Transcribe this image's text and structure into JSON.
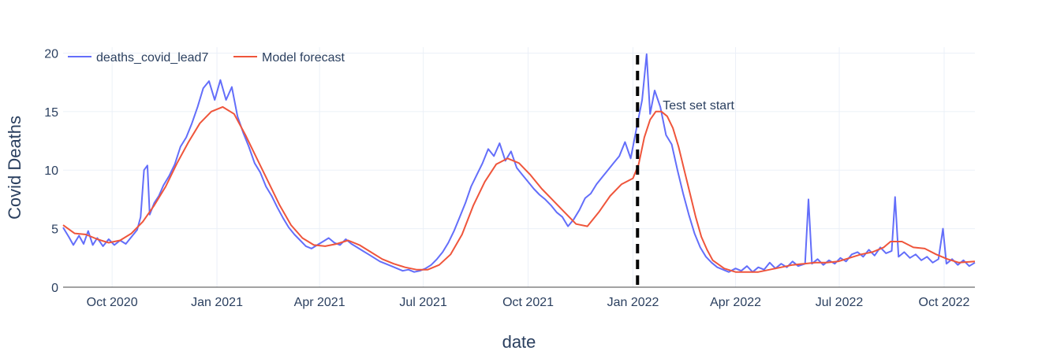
{
  "chart_data": {
    "type": "line",
    "xlabel": "date",
    "ylabel": "Covid Deaths",
    "xlim": [
      "2020-08-19",
      "2022-10-28"
    ],
    "ylim": [
      0,
      20.5
    ],
    "yticks": [
      0,
      5,
      10,
      15,
      20
    ],
    "xticks": [
      {
        "date": "2020-10-01",
        "label": "Oct 2020"
      },
      {
        "date": "2021-01-01",
        "label": "Jan 2021"
      },
      {
        "date": "2021-04-01",
        "label": "Apr 2021"
      },
      {
        "date": "2021-07-01",
        "label": "Jul 2021"
      },
      {
        "date": "2021-10-01",
        "label": "Oct 2021"
      },
      {
        "date": "2022-01-01",
        "label": "Jan 2022"
      },
      {
        "date": "2022-04-01",
        "label": "Apr 2022"
      },
      {
        "date": "2022-07-01",
        "label": "Jul 2022"
      },
      {
        "date": "2022-10-01",
        "label": "Oct 2022"
      }
    ],
    "grid": true,
    "legend": {
      "position": "top-left",
      "orientation": "horizontal"
    },
    "series": [
      {
        "name": "deaths_covid_lead7",
        "color": "#636efa",
        "points": [
          [
            "2020-08-19",
            5.1
          ],
          [
            "2020-08-24",
            4.3
          ],
          [
            "2020-08-28",
            3.6
          ],
          [
            "2020-09-02",
            4.4
          ],
          [
            "2020-09-06",
            3.7
          ],
          [
            "2020-09-10",
            4.8
          ],
          [
            "2020-09-14",
            3.6
          ],
          [
            "2020-09-18",
            4.2
          ],
          [
            "2020-09-23",
            3.5
          ],
          [
            "2020-09-28",
            4.1
          ],
          [
            "2020-10-03",
            3.6
          ],
          [
            "2020-10-08",
            4.0
          ],
          [
            "2020-10-13",
            3.7
          ],
          [
            "2020-10-18",
            4.3
          ],
          [
            "2020-10-23",
            4.9
          ],
          [
            "2020-10-26",
            6.0
          ],
          [
            "2020-10-29",
            10.0
          ],
          [
            "2020-11-01",
            10.4
          ],
          [
            "2020-11-03",
            6.2
          ],
          [
            "2020-11-07",
            7.2
          ],
          [
            "2020-11-11",
            7.8
          ],
          [
            "2020-11-15",
            8.7
          ],
          [
            "2020-11-20",
            9.5
          ],
          [
            "2020-11-25",
            10.5
          ],
          [
            "2020-11-30",
            12.0
          ],
          [
            "2020-12-05",
            12.8
          ],
          [
            "2020-12-10",
            14.0
          ],
          [
            "2020-12-15",
            15.4
          ],
          [
            "2020-12-20",
            17.0
          ],
          [
            "2020-12-25",
            17.6
          ],
          [
            "2020-12-30",
            16.0
          ],
          [
            "2021-01-04",
            17.7
          ],
          [
            "2021-01-09",
            16.0
          ],
          [
            "2021-01-14",
            17.1
          ],
          [
            "2021-01-19",
            14.6
          ],
          [
            "2021-01-24",
            13.2
          ],
          [
            "2021-01-29",
            12.0
          ],
          [
            "2021-02-03",
            10.6
          ],
          [
            "2021-02-08",
            9.8
          ],
          [
            "2021-02-13",
            8.6
          ],
          [
            "2021-02-18",
            7.8
          ],
          [
            "2021-02-23",
            6.8
          ],
          [
            "2021-02-28",
            5.9
          ],
          [
            "2021-03-05",
            5.1
          ],
          [
            "2021-03-10",
            4.5
          ],
          [
            "2021-03-15",
            4.0
          ],
          [
            "2021-03-20",
            3.5
          ],
          [
            "2021-03-25",
            3.3
          ],
          [
            "2021-03-30",
            3.6
          ],
          [
            "2021-04-04",
            3.9
          ],
          [
            "2021-04-09",
            4.2
          ],
          [
            "2021-04-14",
            3.8
          ],
          [
            "2021-04-19",
            3.6
          ],
          [
            "2021-04-24",
            4.1
          ],
          [
            "2021-04-29",
            3.7
          ],
          [
            "2021-05-04",
            3.4
          ],
          [
            "2021-05-09",
            3.1
          ],
          [
            "2021-05-14",
            2.8
          ],
          [
            "2021-05-19",
            2.5
          ],
          [
            "2021-05-24",
            2.2
          ],
          [
            "2021-05-29",
            2.0
          ],
          [
            "2021-06-03",
            1.8
          ],
          [
            "2021-06-08",
            1.6
          ],
          [
            "2021-06-13",
            1.4
          ],
          [
            "2021-06-18",
            1.5
          ],
          [
            "2021-06-23",
            1.3
          ],
          [
            "2021-06-28",
            1.4
          ],
          [
            "2021-07-03",
            1.6
          ],
          [
            "2021-07-08",
            1.9
          ],
          [
            "2021-07-13",
            2.4
          ],
          [
            "2021-07-18",
            3.0
          ],
          [
            "2021-07-23",
            3.8
          ],
          [
            "2021-07-28",
            4.8
          ],
          [
            "2021-08-02",
            6.0
          ],
          [
            "2021-08-07",
            7.2
          ],
          [
            "2021-08-12",
            8.6
          ],
          [
            "2021-08-17",
            9.6
          ],
          [
            "2021-08-22",
            10.6
          ],
          [
            "2021-08-27",
            11.8
          ],
          [
            "2021-09-01",
            11.2
          ],
          [
            "2021-09-06",
            12.3
          ],
          [
            "2021-09-11",
            10.8
          ],
          [
            "2021-09-16",
            11.6
          ],
          [
            "2021-09-21",
            10.2
          ],
          [
            "2021-09-26",
            9.6
          ],
          [
            "2021-10-01",
            9.0
          ],
          [
            "2021-10-06",
            8.4
          ],
          [
            "2021-10-11",
            7.9
          ],
          [
            "2021-10-16",
            7.5
          ],
          [
            "2021-10-21",
            7.0
          ],
          [
            "2021-10-26",
            6.4
          ],
          [
            "2021-10-31",
            6.0
          ],
          [
            "2021-11-05",
            5.2
          ],
          [
            "2021-11-10",
            5.8
          ],
          [
            "2021-11-15",
            6.6
          ],
          [
            "2021-11-20",
            7.6
          ],
          [
            "2021-11-25",
            8.0
          ],
          [
            "2021-11-30",
            8.8
          ],
          [
            "2021-12-05",
            9.4
          ],
          [
            "2021-12-10",
            10.0
          ],
          [
            "2021-12-15",
            10.6
          ],
          [
            "2021-12-20",
            11.2
          ],
          [
            "2021-12-25",
            12.4
          ],
          [
            "2021-12-30",
            11.0
          ],
          [
            "2022-01-04",
            13.5
          ],
          [
            "2022-01-09",
            16.0
          ],
          [
            "2022-01-13",
            19.9
          ],
          [
            "2022-01-16",
            14.8
          ],
          [
            "2022-01-20",
            16.8
          ],
          [
            "2022-01-25",
            15.4
          ],
          [
            "2022-01-30",
            13.0
          ],
          [
            "2022-02-04",
            12.2
          ],
          [
            "2022-02-09",
            10.0
          ],
          [
            "2022-02-14",
            8.0
          ],
          [
            "2022-02-19",
            6.2
          ],
          [
            "2022-02-24",
            4.6
          ],
          [
            "2022-03-01",
            3.4
          ],
          [
            "2022-03-06",
            2.6
          ],
          [
            "2022-03-11",
            2.1
          ],
          [
            "2022-03-16",
            1.7
          ],
          [
            "2022-03-21",
            1.5
          ],
          [
            "2022-03-26",
            1.3
          ],
          [
            "2022-04-01",
            1.6
          ],
          [
            "2022-04-06",
            1.4
          ],
          [
            "2022-04-11",
            1.8
          ],
          [
            "2022-04-16",
            1.3
          ],
          [
            "2022-04-21",
            1.7
          ],
          [
            "2022-04-26",
            1.5
          ],
          [
            "2022-05-01",
            2.1
          ],
          [
            "2022-05-06",
            1.6
          ],
          [
            "2022-05-11",
            2.0
          ],
          [
            "2022-05-16",
            1.7
          ],
          [
            "2022-05-21",
            2.2
          ],
          [
            "2022-05-26",
            1.8
          ],
          [
            "2022-06-01",
            2.0
          ],
          [
            "2022-06-04",
            7.5
          ],
          [
            "2022-06-07",
            2.0
          ],
          [
            "2022-06-12",
            2.4
          ],
          [
            "2022-06-17",
            1.9
          ],
          [
            "2022-06-22",
            2.3
          ],
          [
            "2022-06-27",
            2.0
          ],
          [
            "2022-07-02",
            2.5
          ],
          [
            "2022-07-07",
            2.2
          ],
          [
            "2022-07-12",
            2.8
          ],
          [
            "2022-07-17",
            3.0
          ],
          [
            "2022-07-22",
            2.6
          ],
          [
            "2022-07-27",
            3.2
          ],
          [
            "2022-08-01",
            2.7
          ],
          [
            "2022-08-06",
            3.4
          ],
          [
            "2022-08-11",
            2.9
          ],
          [
            "2022-08-16",
            3.1
          ],
          [
            "2022-08-19",
            7.7
          ],
          [
            "2022-08-22",
            2.6
          ],
          [
            "2022-08-27",
            3.0
          ],
          [
            "2022-09-01",
            2.5
          ],
          [
            "2022-09-06",
            2.8
          ],
          [
            "2022-09-11",
            2.3
          ],
          [
            "2022-09-16",
            2.6
          ],
          [
            "2022-09-21",
            2.1
          ],
          [
            "2022-09-26",
            2.4
          ],
          [
            "2022-09-30",
            5.0
          ],
          [
            "2022-10-03",
            2.0
          ],
          [
            "2022-10-08",
            2.4
          ],
          [
            "2022-10-13",
            1.9
          ],
          [
            "2022-10-18",
            2.3
          ],
          [
            "2022-10-23",
            1.8
          ],
          [
            "2022-10-28",
            2.1
          ]
        ]
      },
      {
        "name": "Model forecast",
        "color": "#ef553b",
        "points": [
          [
            "2020-08-19",
            5.3
          ],
          [
            "2020-08-29",
            4.6
          ],
          [
            "2020-09-08",
            4.5
          ],
          [
            "2020-09-18",
            4.1
          ],
          [
            "2020-09-28",
            3.8
          ],
          [
            "2020-10-08",
            4.0
          ],
          [
            "2020-10-18",
            4.6
          ],
          [
            "2020-10-28",
            5.6
          ],
          [
            "2020-11-07",
            7.0
          ],
          [
            "2020-11-17",
            8.6
          ],
          [
            "2020-11-27",
            10.6
          ],
          [
            "2020-12-07",
            12.4
          ],
          [
            "2020-12-17",
            14.0
          ],
          [
            "2020-12-27",
            15.0
          ],
          [
            "2021-01-06",
            15.4
          ],
          [
            "2021-01-16",
            14.8
          ],
          [
            "2021-01-26",
            13.0
          ],
          [
            "2021-02-05",
            11.0
          ],
          [
            "2021-02-15",
            9.0
          ],
          [
            "2021-02-25",
            7.0
          ],
          [
            "2021-03-07",
            5.3
          ],
          [
            "2021-03-17",
            4.2
          ],
          [
            "2021-03-27",
            3.6
          ],
          [
            "2021-04-06",
            3.5
          ],
          [
            "2021-04-16",
            3.7
          ],
          [
            "2021-04-26",
            4.0
          ],
          [
            "2021-05-06",
            3.6
          ],
          [
            "2021-05-16",
            3.0
          ],
          [
            "2021-05-26",
            2.4
          ],
          [
            "2021-06-05",
            2.0
          ],
          [
            "2021-06-15",
            1.7
          ],
          [
            "2021-06-25",
            1.5
          ],
          [
            "2021-07-05",
            1.5
          ],
          [
            "2021-07-15",
            1.9
          ],
          [
            "2021-07-25",
            2.8
          ],
          [
            "2021-08-04",
            4.5
          ],
          [
            "2021-08-14",
            7.0
          ],
          [
            "2021-08-24",
            9.0
          ],
          [
            "2021-09-03",
            10.5
          ],
          [
            "2021-09-13",
            11.0
          ],
          [
            "2021-09-23",
            10.6
          ],
          [
            "2021-10-03",
            9.6
          ],
          [
            "2021-10-13",
            8.4
          ],
          [
            "2021-10-23",
            7.4
          ],
          [
            "2021-11-02",
            6.4
          ],
          [
            "2021-11-12",
            5.4
          ],
          [
            "2021-11-22",
            5.2
          ],
          [
            "2021-12-02",
            6.4
          ],
          [
            "2021-12-12",
            7.8
          ],
          [
            "2021-12-22",
            8.8
          ],
          [
            "2022-01-01",
            9.3
          ],
          [
            "2022-01-06",
            10.5
          ],
          [
            "2022-01-11",
            12.8
          ],
          [
            "2022-01-16",
            14.3
          ],
          [
            "2022-01-21",
            15.0
          ],
          [
            "2022-01-26",
            15.0
          ],
          [
            "2022-01-31",
            14.6
          ],
          [
            "2022-02-05",
            13.6
          ],
          [
            "2022-02-10",
            12.0
          ],
          [
            "2022-02-15",
            10.0
          ],
          [
            "2022-02-20",
            8.0
          ],
          [
            "2022-02-25",
            6.0
          ],
          [
            "2022-03-02",
            4.3
          ],
          [
            "2022-03-07",
            3.2
          ],
          [
            "2022-03-12",
            2.3
          ],
          [
            "2022-03-22",
            1.6
          ],
          [
            "2022-04-01",
            1.3
          ],
          [
            "2022-04-11",
            1.3
          ],
          [
            "2022-04-21",
            1.3
          ],
          [
            "2022-05-01",
            1.5
          ],
          [
            "2022-05-11",
            1.7
          ],
          [
            "2022-05-21",
            1.9
          ],
          [
            "2022-05-31",
            2.0
          ],
          [
            "2022-06-10",
            2.1
          ],
          [
            "2022-06-20",
            2.1
          ],
          [
            "2022-06-30",
            2.2
          ],
          [
            "2022-07-10",
            2.5
          ],
          [
            "2022-07-20",
            2.8
          ],
          [
            "2022-07-30",
            3.0
          ],
          [
            "2022-08-09",
            3.4
          ],
          [
            "2022-08-15",
            3.9
          ],
          [
            "2022-08-25",
            3.9
          ],
          [
            "2022-09-04",
            3.4
          ],
          [
            "2022-09-14",
            3.3
          ],
          [
            "2022-09-24",
            2.8
          ],
          [
            "2022-10-04",
            2.4
          ],
          [
            "2022-10-14",
            2.1
          ],
          [
            "2022-10-28",
            2.2
          ]
        ]
      }
    ],
    "annotations": [
      {
        "type": "vline",
        "date": "2022-01-05",
        "style": "dashed",
        "color": "#000000",
        "label": "Test set start"
      }
    ]
  }
}
